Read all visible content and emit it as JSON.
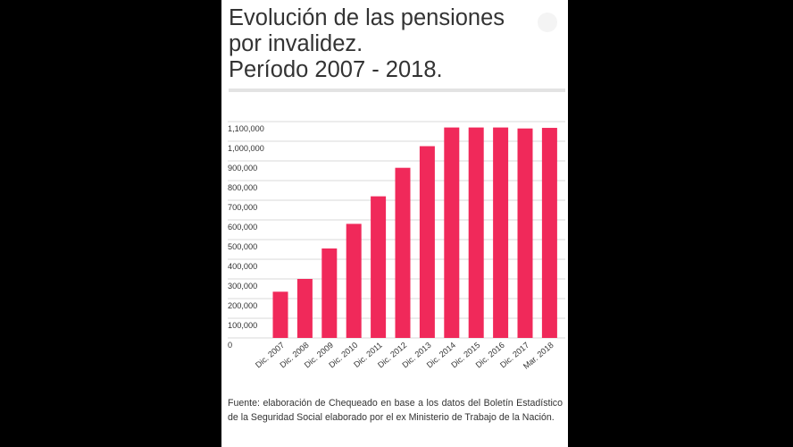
{
  "title_lines": [
    "Evolución de las pensiones",
    "por invalidez.",
    "Período 2007 - 2018."
  ],
  "footer": "Fuente: elaboración de Chequeado en base a los datos del Boletín Estadístico de la Seguridad Social elaborado por el ex Ministerio de Trabajo de la Nación.",
  "colors": {
    "bar": "#f0295a",
    "grid": "#d9d9d9",
    "text": "#333333"
  },
  "chart_data": {
    "type": "bar",
    "categories": [
      "Dic. 2007",
      "Dic. 2008",
      "Dic. 2009",
      "Dic. 2010",
      "Dic. 2011",
      "Dic. 2012",
      "Dic. 2013",
      "Dic. 2014",
      "Dic. 2015",
      "Dic. 2016",
      "Dic. 2017",
      "Mar. 2018"
    ],
    "values": [
      235000,
      300000,
      455000,
      580000,
      720000,
      865000,
      975000,
      1070000,
      1070000,
      1070000,
      1065000,
      1068000
    ],
    "ylim": [
      0,
      1100000
    ],
    "yticks": [
      0,
      100000,
      200000,
      300000,
      400000,
      500000,
      600000,
      700000,
      800000,
      900000,
      1000000,
      1100000
    ],
    "ytick_labels": [
      "0",
      "100,000",
      "200,000",
      "300,000",
      "400,000",
      "500,000",
      "600,000",
      "700,000",
      "800,000",
      "900,000",
      "1,000,000",
      "1,100,000"
    ],
    "grid": true,
    "legend": false
  }
}
